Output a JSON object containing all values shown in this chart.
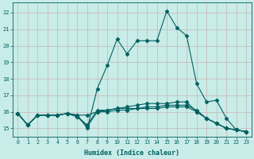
{
  "xlabel": "Humidex (Indice chaleur)",
  "bg_color": "#c8ece8",
  "grid_color": "#c8b4b4",
  "line_color": "#006060",
  "xlim": [
    -0.5,
    23.5
  ],
  "ylim": [
    14.5,
    22.6
  ],
  "yticks": [
    15,
    16,
    17,
    18,
    19,
    20,
    21,
    22
  ],
  "xticks": [
    0,
    1,
    2,
    3,
    4,
    5,
    6,
    7,
    8,
    9,
    10,
    11,
    12,
    13,
    14,
    15,
    16,
    17,
    18,
    19,
    20,
    21,
    22,
    23
  ],
  "line1_x": [
    0,
    1,
    2,
    3,
    4,
    5,
    6,
    7,
    8,
    9,
    10,
    11,
    12,
    13,
    14,
    15,
    16,
    17,
    18,
    19,
    20,
    21,
    22,
    23
  ],
  "line1_y": [
    15.9,
    15.2,
    15.8,
    15.8,
    15.8,
    15.9,
    15.8,
    15.0,
    17.4,
    18.8,
    20.4,
    19.5,
    20.3,
    20.3,
    20.3,
    22.1,
    21.1,
    20.6,
    17.7,
    16.6,
    16.7,
    15.6,
    14.9,
    14.8
  ],
  "line2_x": [
    0,
    1,
    2,
    3,
    4,
    5,
    6,
    7,
    8,
    9,
    10,
    11,
    12,
    13,
    14,
    15,
    16,
    17,
    18,
    19,
    20,
    21,
    22,
    23
  ],
  "line2_y": [
    15.9,
    15.2,
    15.8,
    15.8,
    15.8,
    15.9,
    15.8,
    15.8,
    16.0,
    16.1,
    16.2,
    16.3,
    16.4,
    16.5,
    16.5,
    16.5,
    16.6,
    16.6,
    16.0,
    15.6,
    15.3,
    15.0,
    14.9,
    14.8
  ],
  "line3_x": [
    0,
    1,
    2,
    3,
    4,
    5,
    6,
    7,
    8,
    9,
    10,
    11,
    12,
    13,
    14,
    15,
    16,
    17,
    18,
    19,
    20,
    21,
    22,
    23
  ],
  "line3_y": [
    15.9,
    15.2,
    15.8,
    15.8,
    15.8,
    15.9,
    15.7,
    15.1,
    16.0,
    16.0,
    16.1,
    16.1,
    16.2,
    16.2,
    16.2,
    16.3,
    16.3,
    16.3,
    16.0,
    15.6,
    15.3,
    15.0,
    14.9,
    14.8
  ],
  "line4_x": [
    0,
    1,
    2,
    3,
    4,
    5,
    6,
    7,
    8,
    9,
    10,
    11,
    12,
    13,
    14,
    15,
    16,
    17,
    18,
    19,
    20,
    21,
    22,
    23
  ],
  "line4_y": [
    15.9,
    15.2,
    15.8,
    15.8,
    15.8,
    15.9,
    15.7,
    15.2,
    16.1,
    16.1,
    16.2,
    16.2,
    16.2,
    16.3,
    16.3,
    16.4,
    16.4,
    16.4,
    16.1,
    15.6,
    15.3,
    15.0,
    14.9,
    14.8
  ]
}
